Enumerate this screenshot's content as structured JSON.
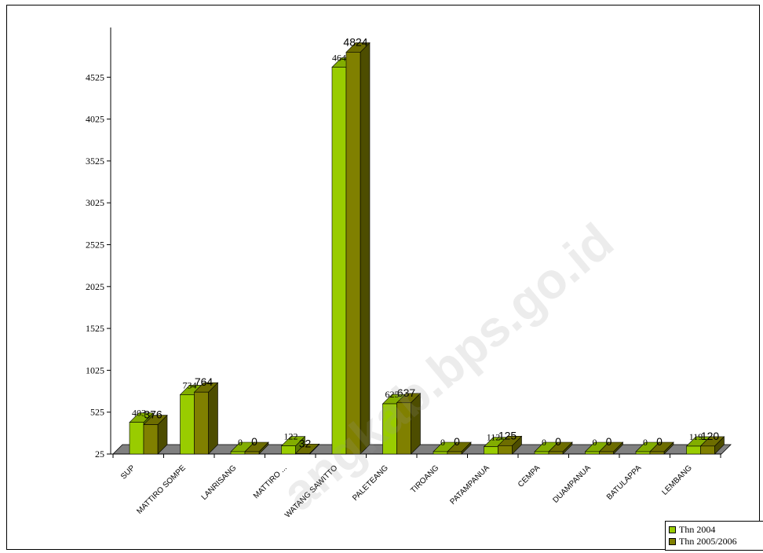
{
  "watermark": "angkab.bps.go.id",
  "colors": {
    "series1": "#99cc00",
    "series2": "#808000",
    "floor": "#808080",
    "axis": "#000000"
  },
  "chart_data": {
    "type": "bar",
    "categories": [
      "SUP",
      "MATTIRO SOMPE",
      "LANRISANG",
      "MATTIRO ...",
      "WATANG SAWITTO",
      "PALETEANG",
      "TIROANG",
      "PATAMPANUA",
      "CEMPA",
      "DUAMPANUA",
      "BATULAPPA",
      "LEMBANG"
    ],
    "series": [
      {
        "name": "Thn 2004",
        "values": [
          403,
          734,
          0,
          122,
          4645,
          625,
          0,
          112,
          0,
          0,
          0,
          119
        ]
      },
      {
        "name": "Thn 2005/2006",
        "values": [
          376,
          764,
          0,
          32,
          4824,
          637,
          0,
          125,
          0,
          0,
          0,
          120
        ]
      }
    ],
    "value_labels": [
      [
        "403",
        "734",
        "0",
        "122",
        "4645",
        "625",
        "0",
        "112",
        "0",
        "0",
        "0",
        "119"
      ],
      [
        "376",
        "764",
        "0",
        "32",
        "4824",
        "637",
        "0",
        "125",
        "0",
        "0",
        "0",
        "120"
      ]
    ],
    "yticks": [
      "25",
      "525",
      "1025",
      "1525",
      "2025",
      "2525",
      "3025",
      "3525",
      "4025",
      "4525"
    ],
    "ylim": [
      25,
      5025
    ],
    "legend_position": "bottom-right",
    "grid": false,
    "style": "3d-clustered-bar"
  }
}
